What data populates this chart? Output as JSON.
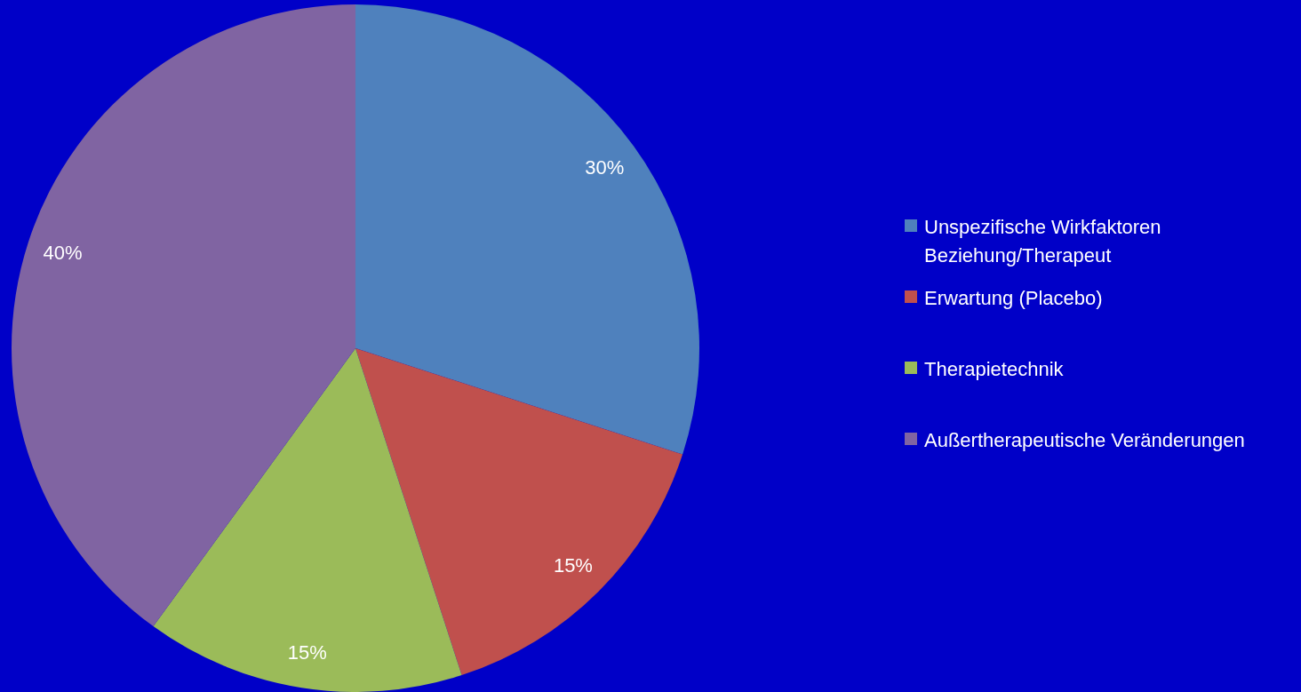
{
  "chart_data": {
    "type": "pie",
    "categories": [
      "Unspezifische Wirkfaktoren Beziehung/Therapeut",
      "Erwartung (Placebo)",
      "Therapietechnik",
      "Außertherapeutische Veränderungen"
    ],
    "values": [
      30,
      15,
      15,
      40
    ],
    "value_labels": [
      "30%",
      "15%",
      "15%",
      "40%"
    ],
    "colors": [
      "#4f81bd",
      "#c0504d",
      "#9bbb59",
      "#8064a2"
    ],
    "legend": "right"
  }
}
